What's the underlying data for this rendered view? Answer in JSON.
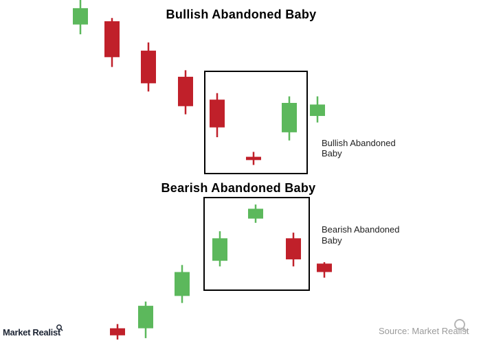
{
  "colors": {
    "bull": "#5cb85c",
    "bear": "#c0202a",
    "frame": "#000000"
  },
  "chart_data": [
    {
      "type": "candlestick",
      "title": "Bullish Abandoned Baby",
      "annotation": [
        "Bullish Abandoned",
        "Baby"
      ],
      "candles": [
        {
          "dir": "bull",
          "open": 90,
          "close": 100,
          "high": 105,
          "low": 84
        },
        {
          "dir": "bear",
          "open": 92,
          "close": 70,
          "high": 94,
          "low": 64
        },
        {
          "dir": "bear",
          "open": 74,
          "close": 54,
          "high": 79,
          "low": 49
        },
        {
          "dir": "bear",
          "open": 58,
          "close": 40,
          "high": 62,
          "low": 35
        },
        {
          "dir": "bear",
          "open": 44,
          "close": 27,
          "high": 48,
          "low": 21
        },
        {
          "dir": "bear",
          "open": 9,
          "close": 7,
          "high": 12,
          "low": 4
        },
        {
          "dir": "bull",
          "open": 24,
          "close": 42,
          "high": 46,
          "low": 19
        },
        {
          "dir": "bull",
          "open": 34,
          "close": 41,
          "high": 46,
          "low": 30
        }
      ]
    },
    {
      "type": "candlestick",
      "title": "Bearish Abandoned Baby",
      "annotation": [
        "Bearish Abandoned",
        "Baby"
      ],
      "candles": [
        {
          "dir": "bear",
          "open": 9,
          "close": 4,
          "high": 12,
          "low": 1
        },
        {
          "dir": "bull",
          "open": 9,
          "close": 25,
          "high": 28,
          "low": 2
        },
        {
          "dir": "bull",
          "open": 32,
          "close": 49,
          "high": 54,
          "low": 27
        },
        {
          "dir": "bull",
          "open": 57,
          "close": 73,
          "high": 78,
          "low": 53
        },
        {
          "dir": "bull",
          "open": 87,
          "close": 94,
          "high": 97,
          "low": 84
        },
        {
          "dir": "bear",
          "open": 73,
          "close": 58,
          "high": 77,
          "low": 53
        },
        {
          "dir": "bear",
          "open": 55,
          "close": 49,
          "high": 56,
          "low": 45
        }
      ]
    }
  ],
  "footer": {
    "logo": "Market Realist",
    "source": "Source: Market Realist"
  }
}
